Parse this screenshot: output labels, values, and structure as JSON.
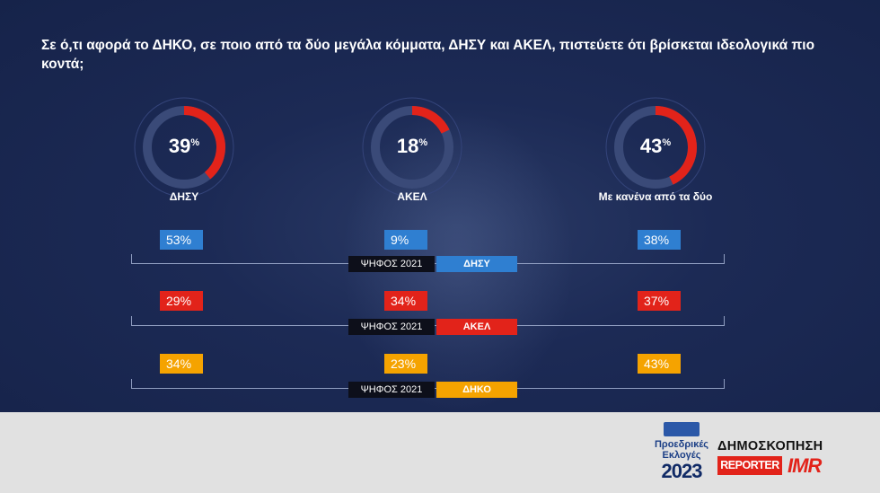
{
  "question": "Σε ό,τι αφορά το ΔΗΚΟ, σε ποιο από τα δύο μεγάλα κόμματα, ΔΗΣΥ και ΑΚΕΛ, πιστεύετε ότι βρίσκεται ιδεολογικά πιο κοντά;",
  "colors": {
    "accent_red": "#e2231a",
    "ring_track": "#3a4a78",
    "dhsy": "#2f7fd1",
    "akel": "#e2231a",
    "dhko": "#f5a300"
  },
  "chart_data": {
    "type": "donut",
    "categories": [
      "ΔΗΣΥ",
      "ΑΚΕΛ",
      "Με κανένα από τα δύο"
    ],
    "values": [
      39,
      18,
      43
    ],
    "value_labels": [
      "39",
      "18",
      "43"
    ],
    "unit": "%",
    "breakdown": {
      "column_header": "ΨΗΦΟΣ 2021",
      "rows": [
        {
          "party": "ΔΗΣΥ",
          "color": "#2f7fd1",
          "values": [
            53,
            9,
            38
          ],
          "labels": [
            "53%",
            "9%",
            "38%"
          ]
        },
        {
          "party": "ΑΚΕΛ",
          "color": "#e2231a",
          "values": [
            29,
            34,
            37
          ],
          "labels": [
            "29%",
            "34%",
            "37%"
          ]
        },
        {
          "party": "ΔΗΚΟ",
          "color": "#f5a300",
          "values": [
            34,
            23,
            43
          ],
          "labels": [
            "34%",
            "23%",
            "43%"
          ]
        }
      ]
    }
  },
  "footer": {
    "elections_logo": {
      "line1": "Προεδρικές",
      "line2": "Εκλογές",
      "year": "2023"
    },
    "poll_title": "ΔΗΜΟΣΚΟΠΗΣΗ",
    "reporter": "REPORTER",
    "imr": "IMR"
  }
}
